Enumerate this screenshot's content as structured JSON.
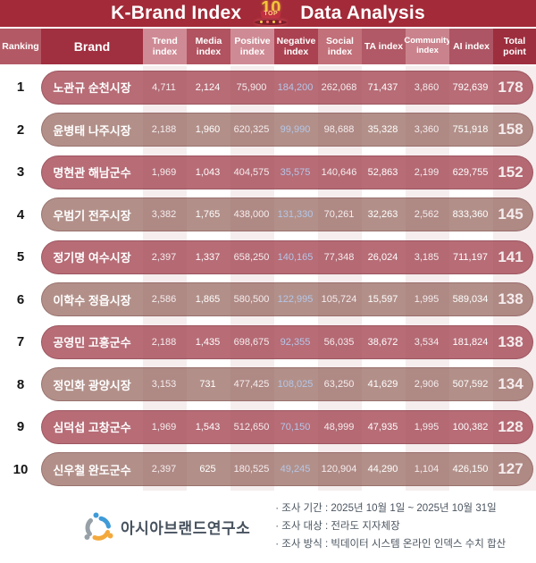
{
  "banner": {
    "title_left": "K-Brand Index",
    "title_right": "Data Analysis",
    "badge": {
      "number": "10",
      "label": "TOP"
    }
  },
  "chart_data": {
    "type": "table",
    "title": "K-Brand Index Data Analysis",
    "columns": [
      "Ranking",
      "Brand",
      "Trend index",
      "Media index",
      "Positive index",
      "Negative index",
      "Social index",
      "TA index",
      "Community index",
      "AI index",
      "Total point"
    ],
    "rows": [
      {
        "rank": "1",
        "brand": "노관규 순천시장",
        "trend": "4,711",
        "media": "2,124",
        "positive": "75,900",
        "negative": "184,200",
        "social": "262,068",
        "ta": "71,437",
        "community": "3,860",
        "ai": "792,639",
        "total": "178"
      },
      {
        "rank": "2",
        "brand": "윤병태 나주시장",
        "trend": "2,188",
        "media": "1,960",
        "positive": "620,325",
        "negative": "99,990",
        "social": "98,688",
        "ta": "35,328",
        "community": "3,360",
        "ai": "751,918",
        "total": "158"
      },
      {
        "rank": "3",
        "brand": "명현관 해남군수",
        "trend": "1,969",
        "media": "1,043",
        "positive": "404,575",
        "negative": "35,575",
        "social": "140,646",
        "ta": "52,863",
        "community": "2,199",
        "ai": "629,755",
        "total": "152"
      },
      {
        "rank": "4",
        "brand": "우범기 전주시장",
        "trend": "3,382",
        "media": "1,765",
        "positive": "438,000",
        "negative": "131,330",
        "social": "70,261",
        "ta": "32,263",
        "community": "2,562",
        "ai": "833,360",
        "total": "145"
      },
      {
        "rank": "5",
        "brand": "정기명 여수시장",
        "trend": "2,397",
        "media": "1,337",
        "positive": "658,250",
        "negative": "140,165",
        "social": "77,348",
        "ta": "26,024",
        "community": "3,185",
        "ai": "711,197",
        "total": "141"
      },
      {
        "rank": "6",
        "brand": "이학수 정읍시장",
        "trend": "2,586",
        "media": "1,865",
        "positive": "580,500",
        "negative": "122,995",
        "social": "105,724",
        "ta": "15,597",
        "community": "1,995",
        "ai": "589,034",
        "total": "138"
      },
      {
        "rank": "7",
        "brand": "공영민 고흥군수",
        "trend": "2,188",
        "media": "1,435",
        "positive": "698,675",
        "negative": "92,355",
        "social": "56,035",
        "ta": "38,672",
        "community": "3,534",
        "ai": "181,824",
        "total": "138"
      },
      {
        "rank": "8",
        "brand": "정인화 광양시장",
        "trend": "3,153",
        "media": "731",
        "positive": "477,425",
        "negative": "108,025",
        "social": "63,250",
        "ta": "41,629",
        "community": "2,906",
        "ai": "507,592",
        "total": "134"
      },
      {
        "rank": "9",
        "brand": "심덕섭 고창군수",
        "trend": "1,969",
        "media": "1,543",
        "positive": "512,650",
        "negative": "70,150",
        "social": "48,999",
        "ta": "47,935",
        "community": "1,995",
        "ai": "100,382",
        "total": "128"
      },
      {
        "rank": "10",
        "brand": "신우철 완도군수",
        "trend": "2,397",
        "media": "625",
        "positive": "180,525",
        "negative": "49,245",
        "social": "120,904",
        "ta": "44,290",
        "community": "1,104",
        "ai": "426,150",
        "total": "127"
      }
    ],
    "layout": {
      "row_style_alternating": true,
      "negative_column_highlighted": true
    }
  },
  "footer": {
    "logo_text": "아시아브랜드연구소",
    "notes": [
      "· 조사 기간 : 2025년 10월 1일 ~ 2025년 10월 31일",
      "· 조사 대상 : 전라도 지자체장",
      "· 조사 방식 : 빅데이터 시스템 온라인 인덱스 수치 합산"
    ]
  },
  "colors": {
    "banner_bg": "#a32a38",
    "header_dark": "#a02f3f",
    "header_light": "#cf8b95",
    "pill_odd": "#b76c76",
    "pill_even": "#b29089",
    "negative_text": "#b5c6e8",
    "stripe_pink": "#f5e6e8",
    "badge_gold": "#f6c33d",
    "footer_text": "#4a545f"
  }
}
